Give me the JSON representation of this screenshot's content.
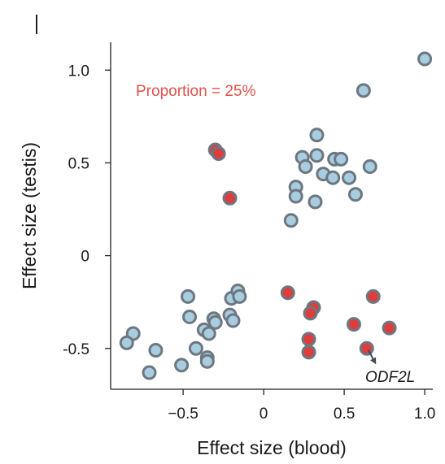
{
  "chart_data": {
    "type": "scatter",
    "xlabel": "Effect size (blood)",
    "ylabel": "Effect size (testis)",
    "xlim": [
      -0.95,
      1.05
    ],
    "ylim": [
      -0.72,
      1.15
    ],
    "xticks": [
      -0.5,
      0,
      0.5,
      1.0
    ],
    "xtick_labels": [
      "−0.5",
      "0",
      "0.5",
      "1.0"
    ],
    "yticks": [
      -0.5,
      0,
      0.5,
      1.0
    ],
    "ytick_labels": [
      "-0.5",
      "0",
      "0.5",
      "1.0"
    ],
    "grid": false,
    "legend": "none",
    "annotation": {
      "text": "Proportion = 25%",
      "color": "#e0504a"
    },
    "point_label": {
      "text": "ODF2L",
      "x": 0.64,
      "y": -0.5
    },
    "colors": {
      "blue_fill": "#a8cde0",
      "red_fill": "#e03c3c",
      "edge": "#6d7780",
      "arrow": "#3d4d5c"
    },
    "series": [
      {
        "color_key": "blue",
        "points": [
          [
            1.0,
            1.06
          ],
          [
            0.62,
            0.89
          ],
          [
            0.33,
            0.65
          ],
          [
            0.24,
            0.53
          ],
          [
            0.33,
            0.54
          ],
          [
            0.26,
            0.48
          ],
          [
            0.44,
            0.52
          ],
          [
            0.48,
            0.52
          ],
          [
            0.66,
            0.48
          ],
          [
            0.37,
            0.44
          ],
          [
            0.43,
            0.42
          ],
          [
            0.53,
            0.42
          ],
          [
            0.2,
            0.37
          ],
          [
            0.2,
            0.32
          ],
          [
            0.57,
            0.33
          ],
          [
            0.32,
            0.29
          ],
          [
            0.17,
            0.19
          ],
          [
            -0.47,
            -0.22
          ],
          [
            -0.2,
            -0.23
          ],
          [
            -0.16,
            -0.19
          ],
          [
            -0.15,
            -0.22
          ],
          [
            -0.46,
            -0.33
          ],
          [
            -0.31,
            -0.34
          ],
          [
            -0.3,
            -0.36
          ],
          [
            -0.21,
            -0.32
          ],
          [
            -0.19,
            -0.35
          ],
          [
            -0.37,
            -0.4
          ],
          [
            -0.34,
            -0.42
          ],
          [
            -0.81,
            -0.42
          ],
          [
            -0.85,
            -0.47
          ],
          [
            -0.42,
            -0.5
          ],
          [
            -0.67,
            -0.51
          ],
          [
            -0.35,
            -0.55
          ],
          [
            -0.35,
            -0.57
          ],
          [
            -0.51,
            -0.59
          ],
          [
            -0.71,
            -0.63
          ]
        ]
      },
      {
        "color_key": "red",
        "points": [
          [
            -0.3,
            0.57
          ],
          [
            -0.28,
            0.55
          ],
          [
            -0.21,
            0.31
          ],
          [
            0.15,
            -0.2
          ],
          [
            0.31,
            -0.28
          ],
          [
            0.29,
            -0.31
          ],
          [
            0.68,
            -0.22
          ],
          [
            0.56,
            -0.37
          ],
          [
            0.78,
            -0.39
          ],
          [
            0.28,
            -0.45
          ],
          [
            0.28,
            -0.52
          ],
          [
            0.64,
            -0.5
          ]
        ]
      }
    ]
  }
}
